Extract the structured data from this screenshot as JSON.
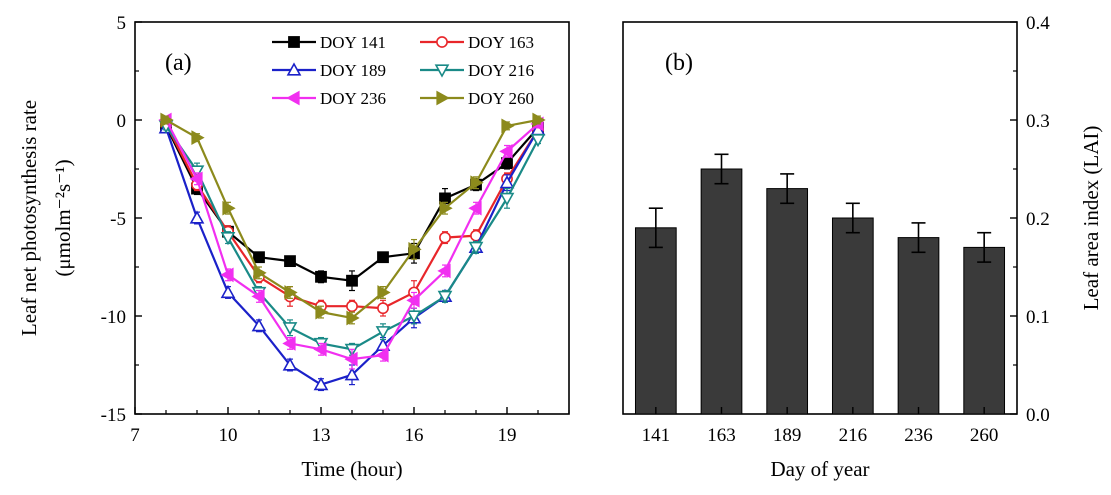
{
  "chart_data": [
    {
      "type": "line",
      "panel_label": "(a)",
      "xlabel": "Time (hour)",
      "ylabel_main": "Leaf net photosynthesis rate",
      "ylabel_unit": "(μmolm⁻²s⁻¹)",
      "xlim": [
        7,
        21
      ],
      "ylim": [
        -15,
        5
      ],
      "xticks": [
        7,
        10,
        13,
        16,
        19
      ],
      "yticks": [
        -15,
        -10,
        -5,
        0,
        5
      ],
      "grid": false,
      "legend_position": "top",
      "x": [
        8,
        9,
        10,
        11,
        12,
        13,
        14,
        15,
        16,
        17,
        18,
        19,
        20
      ],
      "series": [
        {
          "name": "DOY 141",
          "color": "#000000",
          "marker": "square-filled",
          "values": [
            -0.3,
            -3.5,
            -5.7,
            -7.0,
            -7.2,
            -8.0,
            -8.2,
            -7.0,
            -6.8,
            -4.0,
            -3.3,
            -2.2,
            -0.4
          ],
          "errors": [
            0.2,
            0.3,
            0.3,
            0.2,
            0.2,
            0.3,
            0.5,
            0.2,
            0.5,
            0.5,
            0.3,
            0.3,
            0.2
          ]
        },
        {
          "name": "DOY 163",
          "color": "#e8262a",
          "marker": "circle-open",
          "values": [
            -0.2,
            -3.3,
            -5.7,
            -8.0,
            -9.0,
            -9.5,
            -9.5,
            -9.6,
            -8.8,
            -6.0,
            -5.9,
            -3.0,
            -0.5
          ],
          "errors": [
            0.2,
            0.3,
            0.3,
            0.3,
            0.5,
            0.3,
            0.3,
            0.4,
            0.6,
            0.3,
            0.3,
            0.3,
            0.2
          ]
        },
        {
          "name": "DOY 189",
          "color": "#1b21c9",
          "marker": "triangle-up-open",
          "values": [
            -0.4,
            -5.0,
            -8.8,
            -10.5,
            -12.5,
            -13.5,
            -13.0,
            -11.5,
            -10.1,
            -9.0,
            -6.5,
            -3.2,
            -0.5
          ],
          "errors": [
            0.2,
            0.3,
            0.3,
            0.3,
            0.3,
            0.3,
            0.5,
            0.4,
            0.5,
            0.3,
            0.3,
            0.4,
            0.2
          ]
        },
        {
          "name": "DOY 216",
          "color": "#1a8a87",
          "marker": "triangle-down-open",
          "values": [
            -0.3,
            -2.6,
            -6.0,
            -8.8,
            -10.6,
            -11.4,
            -11.7,
            -10.8,
            -10.0,
            -9.0,
            -6.5,
            -4.0,
            -1.0
          ],
          "errors": [
            0.2,
            0.4,
            0.3,
            0.3,
            0.4,
            0.3,
            0.3,
            0.4,
            0.4,
            0.3,
            0.3,
            0.5,
            0.2
          ]
        },
        {
          "name": "DOY 236",
          "color": "#f12ff0",
          "marker": "triangle-left-filled",
          "values": [
            0,
            -3.0,
            -7.9,
            -9.0,
            -11.4,
            -11.7,
            -12.2,
            -12.0,
            -9.2,
            -7.7,
            -4.5,
            -1.6,
            -0.2
          ],
          "errors": [
            0.2,
            0.3,
            0.3,
            0.3,
            0.3,
            0.3,
            0.5,
            0.3,
            0.4,
            0.3,
            0.3,
            0.3,
            0.2
          ]
        },
        {
          "name": "DOY 260",
          "color": "#8c8a1c",
          "marker": "triangle-right-filled",
          "values": [
            0,
            -0.9,
            -4.5,
            -7.8,
            -8.8,
            -9.8,
            -10.1,
            -8.8,
            -6.6,
            -4.5,
            -3.2,
            -0.3,
            0
          ],
          "errors": [
            0.2,
            0.2,
            0.3,
            0.3,
            0.3,
            0.3,
            0.3,
            0.3,
            0.5,
            0.3,
            0.3,
            0.2,
            0.2
          ]
        }
      ]
    },
    {
      "type": "bar",
      "panel_label": "(b)",
      "xlabel": "Day of year",
      "ylabel": "Leaf area index (LAI)",
      "ylim": [
        0,
        0.4
      ],
      "yticks": [
        "0.0",
        "0.1",
        "0.2",
        "0.3",
        "0.4"
      ],
      "grid": false,
      "bar_color": "#3a3a3a",
      "categories": [
        "141",
        "163",
        "189",
        "216",
        "236",
        "260"
      ],
      "values": [
        0.19,
        0.25,
        0.23,
        0.2,
        0.18,
        0.17
      ],
      "errors": [
        0.02,
        0.015,
        0.015,
        0.015,
        0.015,
        0.015
      ]
    }
  ]
}
